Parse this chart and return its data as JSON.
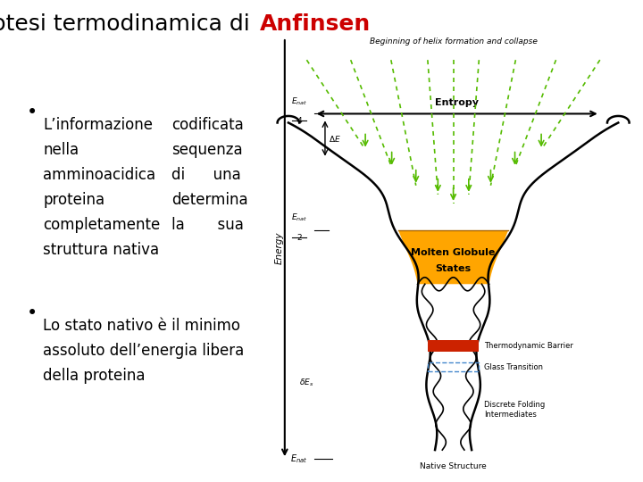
{
  "title_normal": "Ipotesi termodinamica di ",
  "title_bold_red": "Anfinsen",
  "title_fontsize": 18,
  "title_color_normal": "#000000",
  "title_color_bold": "#cc0000",
  "bullet1_col1": [
    "L’informazione",
    "nella",
    "amminoacidica",
    "proteina",
    "completamente",
    "struttura nativa"
  ],
  "bullet1_col2": [
    "codificata",
    "sequenza",
    "di      una",
    "determina",
    "la       sua",
    ""
  ],
  "bullet2_lines": [
    "Lo stato nativo è il minimo",
    "assoluto dell’energia libera",
    "della proteina"
  ],
  "bullet_fontsize": 12,
  "background_color": "#ffffff",
  "text_color": "#000000",
  "funnel_green": "#55bb00",
  "funnel_orange": "#FFA500",
  "funnel_red": "#cc2200",
  "funnel_blue": "#4488cc"
}
